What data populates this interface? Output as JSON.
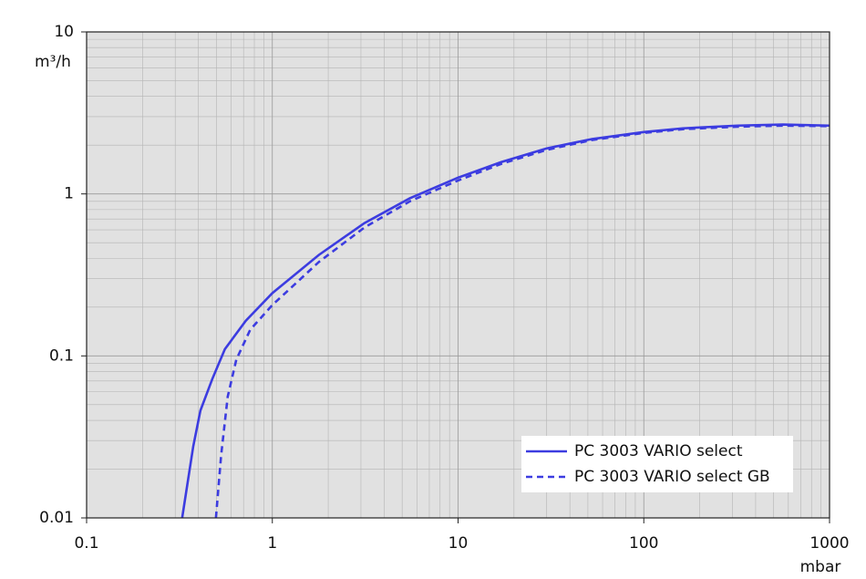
{
  "chart_data": {
    "type": "line",
    "x_axis_label": "mbar",
    "y_axis_label": "m³/h",
    "xscale": "log",
    "yscale": "log",
    "xlim": [
      0.1,
      1000
    ],
    "ylim": [
      0.01,
      10
    ],
    "xticks": [
      0.1,
      1,
      10,
      100,
      1000
    ],
    "yticks": [
      0.01,
      0.1,
      1,
      10
    ],
    "grid": true,
    "legend": "lower right",
    "series": [
      {
        "name": "PC 3003 VARIO select",
        "color": "#3c3ce0",
        "dash": "solid",
        "x": [
          0.327,
          0.375,
          0.41,
          0.475,
          0.555,
          0.72,
          1,
          1.78,
          3.13,
          5.5,
          10,
          17,
          30,
          52.5,
          100,
          162,
          320,
          562,
          1000
        ],
        "values": [
          0.01,
          0.0276,
          0.046,
          0.072,
          0.11,
          0.165,
          0.244,
          0.42,
          0.66,
          0.94,
          1.26,
          1.57,
          1.91,
          2.18,
          2.41,
          2.54,
          2.64,
          2.68,
          2.64
        ]
      },
      {
        "name": "PC 3003 VARIO select GB",
        "color": "#3c3ce0",
        "dash": "dashed",
        "x": [
          0.497,
          0.53,
          0.575,
          0.64,
          0.76,
          1,
          1.78,
          3.13,
          5.5,
          10,
          17,
          30,
          52.5,
          100,
          162,
          320,
          562,
          1000
        ],
        "values": [
          0.01,
          0.0243,
          0.056,
          0.095,
          0.145,
          0.206,
          0.38,
          0.62,
          0.9,
          1.21,
          1.53,
          1.87,
          2.15,
          2.38,
          2.51,
          2.6,
          2.64,
          2.62
        ]
      }
    ]
  }
}
